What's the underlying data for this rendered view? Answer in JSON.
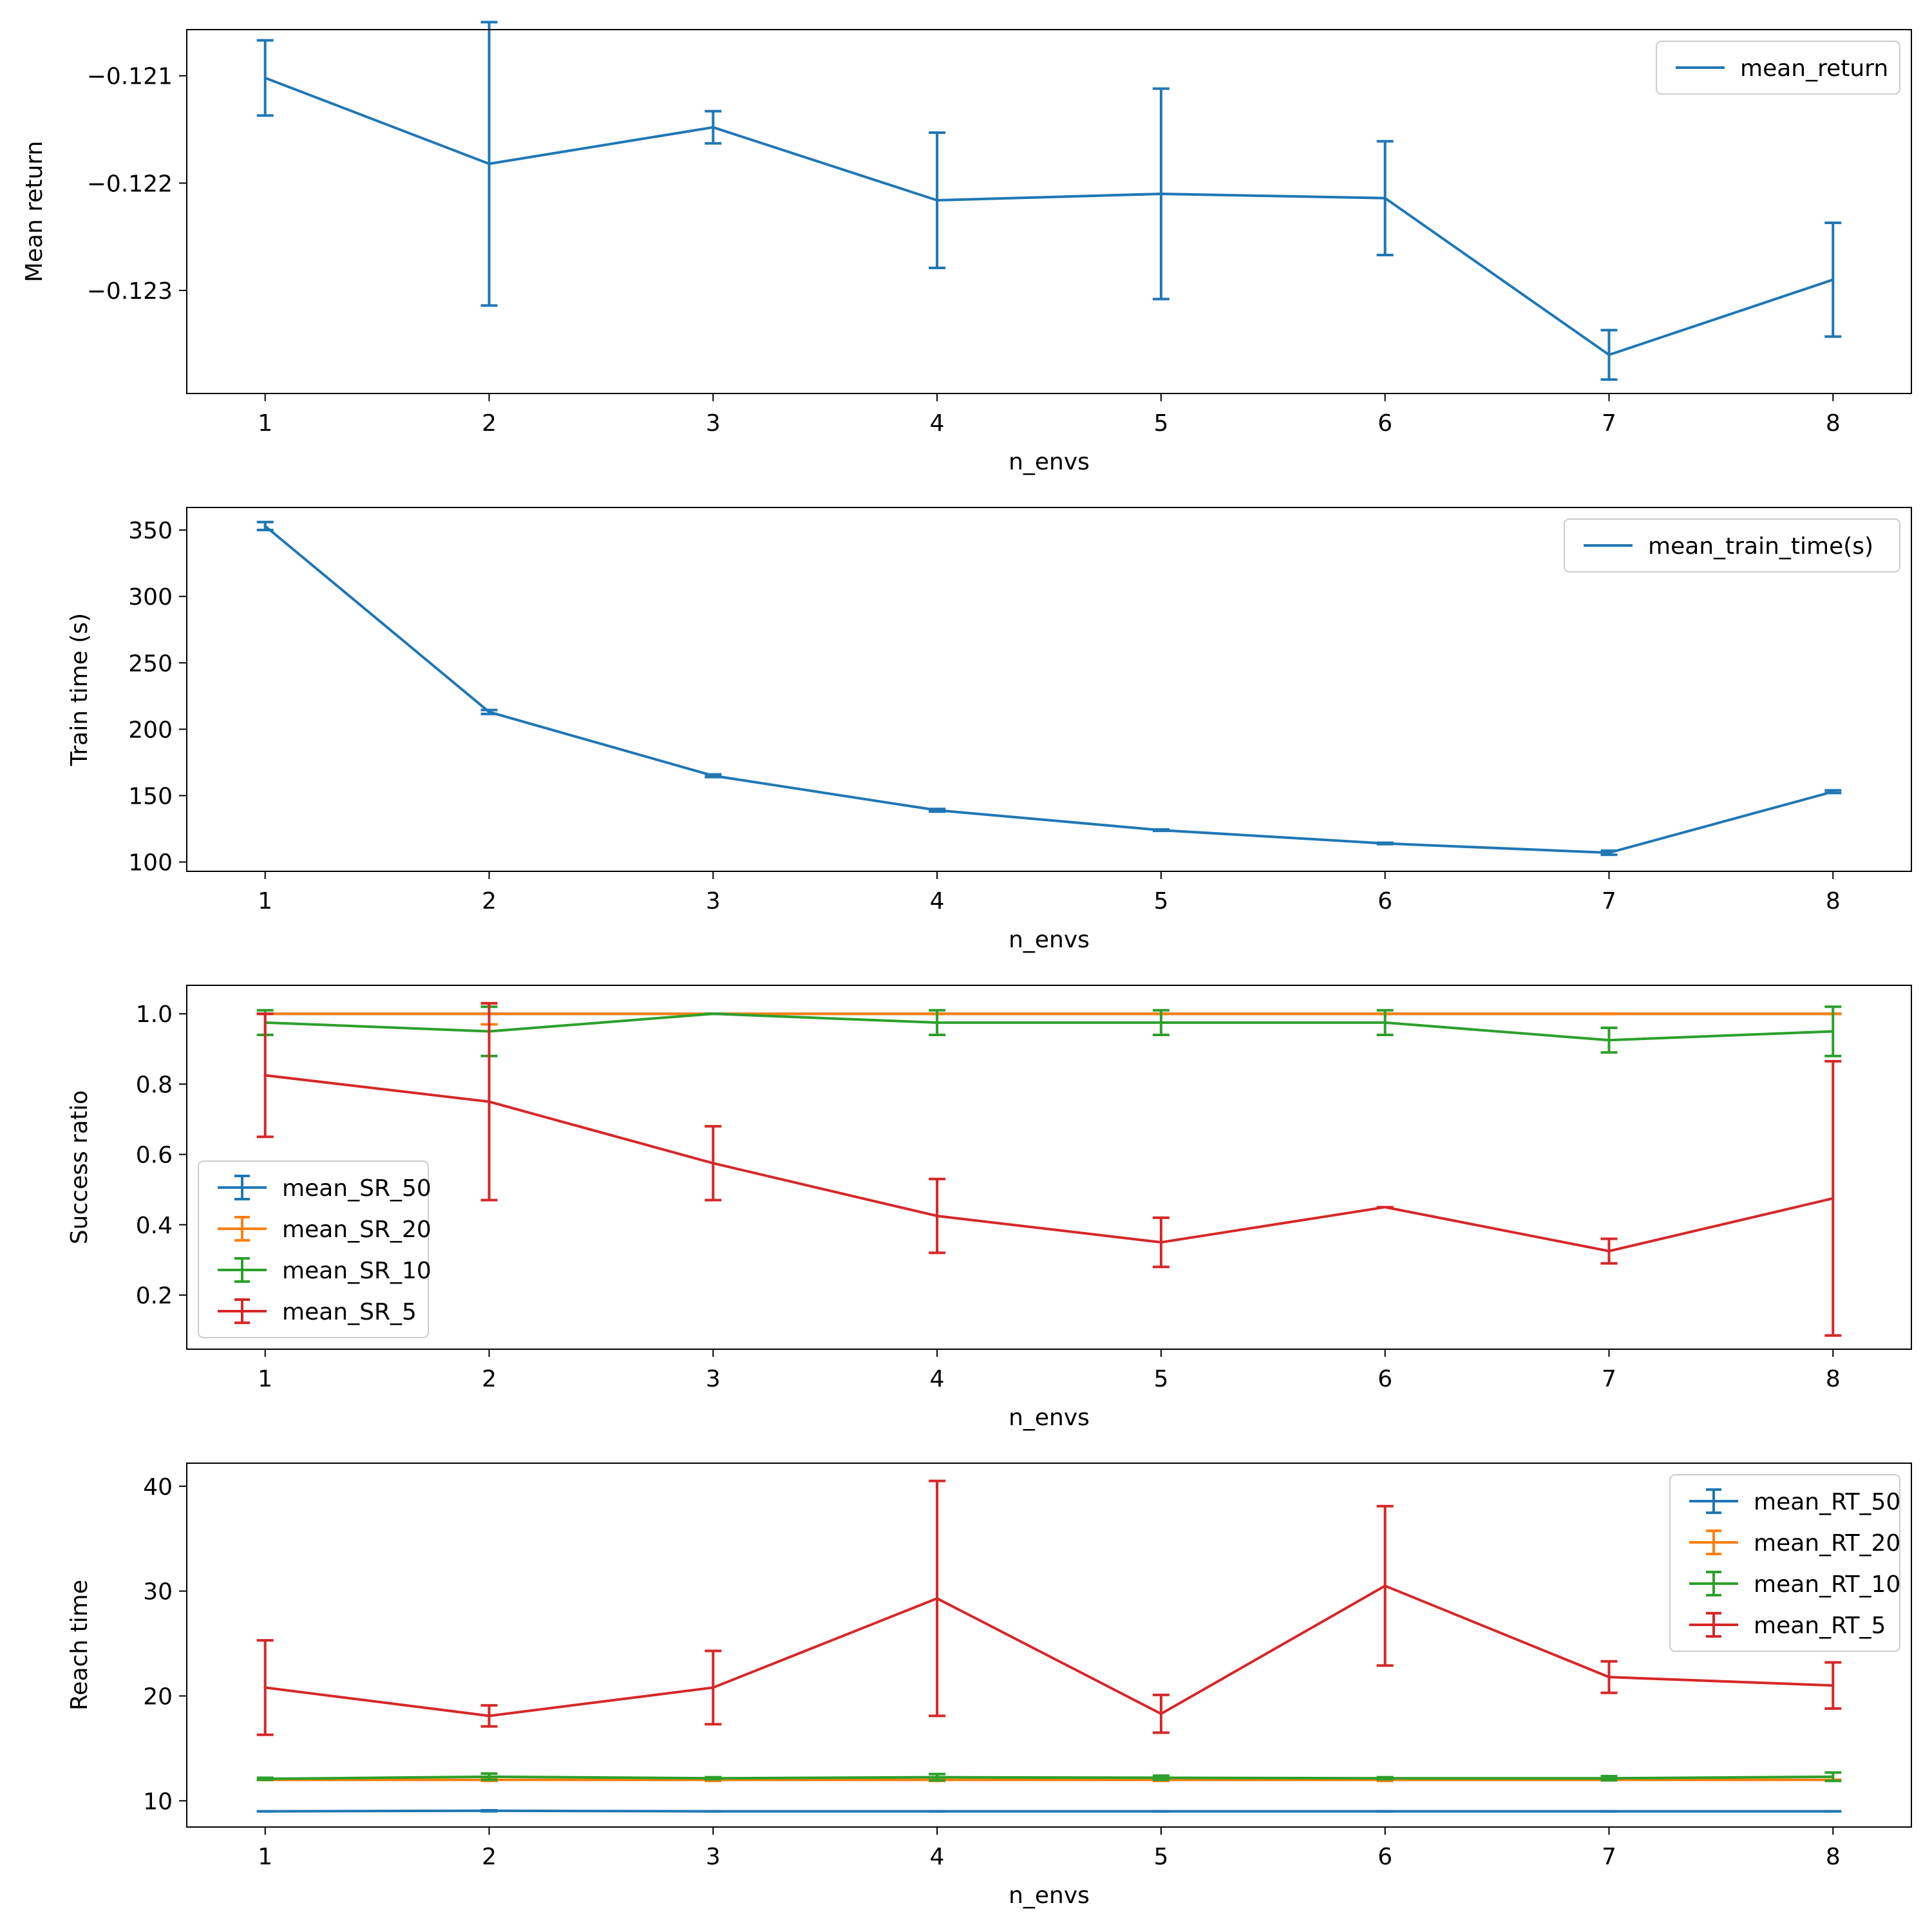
{
  "chart_data": [
    {
      "type": "line",
      "xlabel": "n_envs",
      "ylabel": "Mean return",
      "x": [
        1,
        2,
        3,
        4,
        5,
        6,
        7,
        8
      ],
      "xlim": [
        0.65,
        8.35
      ],
      "ylim": [
        -0.12396,
        -0.12057
      ],
      "yticks": [
        -0.121,
        -0.122,
        -0.123
      ],
      "ytick_labels": [
        "−0.121",
        "−0.122",
        "−0.123"
      ],
      "legend_position": "upper-right",
      "legend_style": "line",
      "series": [
        {
          "name": "mean_return",
          "color": "#1f77b4",
          "values": [
            -0.12102,
            -0.12182,
            -0.12148,
            -0.12216,
            -0.1221,
            -0.12214,
            -0.1236,
            -0.1229
          ],
          "errors": [
            0.00035,
            0.00132,
            0.00015,
            0.00063,
            0.00098,
            0.00053,
            0.00023,
            0.00053
          ]
        }
      ]
    },
    {
      "type": "line",
      "xlabel": "n_envs",
      "ylabel": "Train time (s)",
      "x": [
        1,
        2,
        3,
        4,
        5,
        6,
        7,
        8
      ],
      "xlim": [
        0.65,
        8.35
      ],
      "ylim": [
        93,
        367
      ],
      "yticks": [
        100,
        150,
        200,
        250,
        300,
        350
      ],
      "ytick_labels": [
        "100",
        "150",
        "200",
        "250",
        "300",
        "350"
      ],
      "legend_position": "upper-right",
      "legend_style": "line",
      "series": [
        {
          "name": "mean_train_time(s)",
          "color": "#1f77b4",
          "values": [
            353,
            213,
            165,
            139,
            124,
            114,
            107,
            153
          ],
          "errors": [
            3,
            1.5,
            1,
            1,
            0.5,
            0.5,
            1.5,
            1
          ]
        }
      ]
    },
    {
      "type": "line",
      "xlabel": "n_envs",
      "ylabel": "Success ratio",
      "x": [
        1,
        2,
        3,
        4,
        5,
        6,
        7,
        8
      ],
      "xlim": [
        0.65,
        8.35
      ],
      "ylim": [
        0.046,
        1.081
      ],
      "yticks": [
        0.2,
        0.4,
        0.6,
        0.8,
        1.0
      ],
      "ytick_labels": [
        "0.2",
        "0.4",
        "0.6",
        "0.8",
        "1.0"
      ],
      "legend_position": "lower-left",
      "legend_style": "errorbar",
      "series": [
        {
          "name": "mean_SR_50",
          "color": "#1f77b4",
          "values": [
            1,
            1,
            1,
            1,
            1,
            1,
            1,
            1
          ],
          "errors": [
            0,
            0,
            0,
            0,
            0,
            0,
            0,
            0
          ]
        },
        {
          "name": "mean_SR_20",
          "color": "#ff7f0e",
          "values": [
            1,
            1,
            1,
            1,
            1,
            1,
            1,
            1
          ],
          "errors": [
            0,
            0.03,
            0,
            0,
            0,
            0,
            0,
            0
          ]
        },
        {
          "name": "mean_SR_10",
          "color": "#2ca02c",
          "values": [
            0.975,
            0.95,
            1.0,
            0.975,
            0.975,
            0.975,
            0.925,
            0.95
          ],
          "errors": [
            0.035,
            0.07,
            0,
            0.035,
            0.035,
            0.035,
            0.035,
            0.07
          ]
        },
        {
          "name": "mean_SR_5",
          "color": "#d62728",
          "values": [
            0.825,
            0.75,
            0.575,
            0.425,
            0.35,
            0.45,
            0.325,
            0.475
          ],
          "errors": [
            0.175,
            0.28,
            0.105,
            0.105,
            0.07,
            0,
            0.035,
            0.39
          ]
        }
      ]
    },
    {
      "type": "line",
      "xlabel": "n_envs",
      "ylabel": "Reach time",
      "x": [
        1,
        2,
        3,
        4,
        5,
        6,
        7,
        8
      ],
      "xlim": [
        0.65,
        8.35
      ],
      "ylim": [
        7.5,
        42.2
      ],
      "yticks": [
        10,
        20,
        30,
        40
      ],
      "ytick_labels": [
        "10",
        "20",
        "30",
        "40"
      ],
      "legend_position": "upper-right",
      "legend_style": "errorbar",
      "series": [
        {
          "name": "mean_RT_50",
          "color": "#1f77b4",
          "values": [
            9,
            9.05,
            9,
            9,
            9,
            9,
            9,
            9
          ],
          "errors": [
            0,
            0.05,
            0,
            0,
            0,
            0,
            0,
            0
          ]
        },
        {
          "name": "mean_RT_20",
          "color": "#ff7f0e",
          "values": [
            12,
            12,
            12,
            12,
            12,
            12,
            12,
            12
          ],
          "errors": [
            0,
            0.1,
            0.1,
            0.1,
            0.1,
            0.1,
            0,
            0
          ]
        },
        {
          "name": "mean_RT_10",
          "color": "#2ca02c",
          "values": [
            12.1,
            12.3,
            12.15,
            12.25,
            12.2,
            12.15,
            12.15,
            12.3
          ],
          "errors": [
            0.1,
            0.3,
            0.1,
            0.3,
            0.2,
            0.1,
            0.2,
            0.4
          ]
        },
        {
          "name": "mean_RT_5",
          "color": "#d62728",
          "values": [
            20.8,
            18.1,
            20.8,
            29.3,
            18.3,
            30.5,
            21.8,
            21.0
          ],
          "errors": [
            4.5,
            1.0,
            3.5,
            11.2,
            1.8,
            7.6,
            1.5,
            2.2
          ]
        }
      ]
    }
  ]
}
